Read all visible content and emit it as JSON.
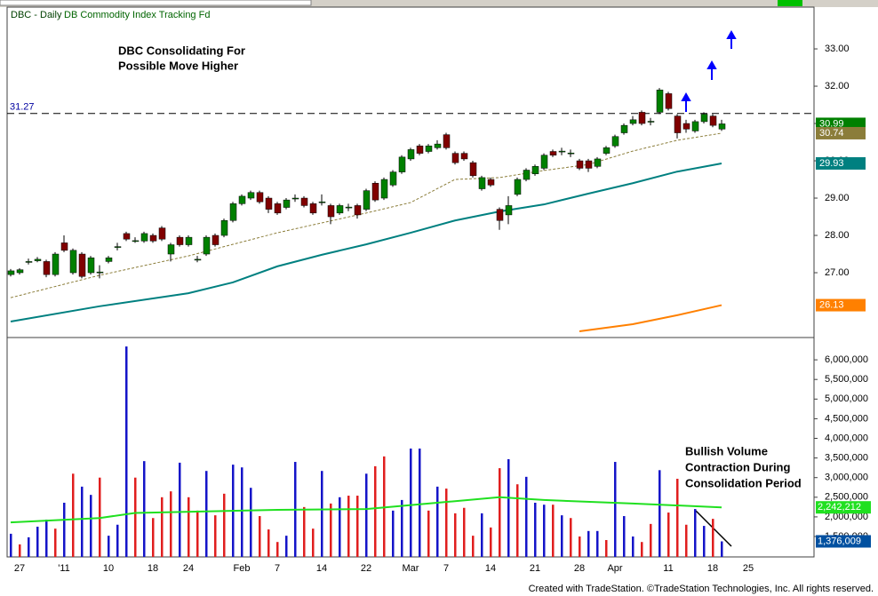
{
  "header": {
    "symbol": "DBC - Daily",
    "name": "DB Commodity Index Tracking Fd"
  },
  "footer": "Created with TradeStation. ©TradeStation Technologies, Inc. All rights reserved.",
  "chart_data": [
    {
      "type": "candlestick",
      "categories": [
        null,
        "27",
        null,
        null,
        null,
        null,
        "'11",
        null,
        null,
        null,
        null,
        "10",
        null,
        null,
        null,
        null,
        "18",
        null,
        null,
        null,
        "24",
        null,
        null,
        null,
        null,
        null,
        "Feb",
        null,
        null,
        null,
        "7",
        null,
        null,
        null,
        null,
        "14",
        null,
        null,
        null,
        null,
        "22",
        null,
        null,
        null,
        null,
        "Mar",
        null,
        null,
        null,
        "7",
        null,
        null,
        null,
        null,
        "14",
        null,
        null,
        null,
        null,
        "21",
        null,
        null,
        null,
        null,
        "28",
        null,
        null,
        null,
        "Apr",
        null,
        null,
        null,
        null,
        null,
        "11",
        null,
        null,
        null,
        null,
        "18",
        null,
        null,
        null,
        "25"
      ],
      "open": [
        26.95,
        27.0,
        27.28,
        27.32,
        27.3,
        26.95,
        27.8,
        27.0,
        27.5,
        27.0,
        27.0,
        27.3,
        27.68,
        28.05,
        27.84,
        27.85,
        28.0,
        28.2,
        27.5,
        27.95,
        27.75,
        27.34,
        27.5,
        28.0,
        28.0,
        28.4,
        28.85,
        29.0,
        29.15,
        29.0,
        28.85,
        28.75,
        28.98,
        29.0,
        28.85,
        28.88,
        28.8,
        28.6,
        28.74,
        28.8,
        28.7,
        29.4,
        29.0,
        29.35,
        29.7,
        30.05,
        30.4,
        30.25,
        30.35,
        30.7,
        30.2,
        30.2,
        29.95,
        29.25,
        29.5,
        28.7,
        28.55,
        29.1,
        29.5,
        29.65,
        29.8,
        30.25,
        30.24,
        30.19,
        30.0,
        30.0,
        29.85,
        30.2,
        30.4,
        30.75,
        31.0,
        31.3,
        31.04,
        31.3,
        31.8,
        31.2,
        31.0,
        30.8,
        31.05,
        31.2,
        30.85,
        null,
        null,
        null
      ],
      "high": [
        27.1,
        27.12,
        27.38,
        27.42,
        27.35,
        27.55,
        28.0,
        27.65,
        27.55,
        27.45,
        27.2,
        27.45,
        27.8,
        28.1,
        27.95,
        28.1,
        28.05,
        28.25,
        27.8,
        28.0,
        28.0,
        27.45,
        28.0,
        28.05,
        28.45,
        28.9,
        29.1,
        29.2,
        29.2,
        29.05,
        28.9,
        29.0,
        29.1,
        29.05,
        28.9,
        29.1,
        28.85,
        28.85,
        28.85,
        28.85,
        29.25,
        29.45,
        29.55,
        29.75,
        30.15,
        30.35,
        30.45,
        30.45,
        30.55,
        30.75,
        30.25,
        30.25,
        30.0,
        29.6,
        29.55,
        28.75,
        29.05,
        29.55,
        29.8,
        29.9,
        30.2,
        30.3,
        30.35,
        30.3,
        30.05,
        30.05,
        30.1,
        30.4,
        30.7,
        31.0,
        31.2,
        31.35,
        31.15,
        31.95,
        31.85,
        31.25,
        31.1,
        31.1,
        31.3,
        31.25,
        31.1,
        null,
        null,
        null
      ],
      "low": [
        26.9,
        26.95,
        27.22,
        27.28,
        26.88,
        26.9,
        27.55,
        26.95,
        26.85,
        26.95,
        26.85,
        27.25,
        27.6,
        27.85,
        27.8,
        27.8,
        27.8,
        27.85,
        27.3,
        27.7,
        27.7,
        27.28,
        27.45,
        27.7,
        27.95,
        28.35,
        28.8,
        28.95,
        28.85,
        28.6,
        28.55,
        28.7,
        28.9,
        28.75,
        28.55,
        28.8,
        28.3,
        28.55,
        28.65,
        28.45,
        28.65,
        28.9,
        28.95,
        29.3,
        29.65,
        30.0,
        30.15,
        30.2,
        30.3,
        30.3,
        29.9,
        30.0,
        29.55,
        29.2,
        29.3,
        28.15,
        28.3,
        29.05,
        29.45,
        29.6,
        29.75,
        30.1,
        30.15,
        30.1,
        29.75,
        29.7,
        29.8,
        30.15,
        30.35,
        30.7,
        30.95,
        30.95,
        30.95,
        31.25,
        31.35,
        30.6,
        30.75,
        30.75,
        31.0,
        30.9,
        30.8,
        null,
        null,
        null
      ],
      "close": [
        27.05,
        27.08,
        27.3,
        27.36,
        26.95,
        27.5,
        27.6,
        27.6,
        26.9,
        27.4,
        27.02,
        27.4,
        27.7,
        27.9,
        27.86,
        28.05,
        27.85,
        27.9,
        27.75,
        27.75,
        27.95,
        27.36,
        27.95,
        27.75,
        28.4,
        28.85,
        29.05,
        29.15,
        28.9,
        28.7,
        28.6,
        28.95,
        29.0,
        28.8,
        28.6,
        28.9,
        28.5,
        28.8,
        28.76,
        28.55,
        29.2,
        28.95,
        29.5,
        29.7,
        30.1,
        30.3,
        30.2,
        30.4,
        30.45,
        30.35,
        29.95,
        30.05,
        29.6,
        29.55,
        29.35,
        28.4,
        28.8,
        29.5,
        29.75,
        29.85,
        30.15,
        30.15,
        30.26,
        30.21,
        29.8,
        29.8,
        30.05,
        30.35,
        30.65,
        30.95,
        31.1,
        31.0,
        31.06,
        31.9,
        31.4,
        30.75,
        30.85,
        31.05,
        31.25,
        30.95,
        30.99,
        null,
        null,
        null
      ],
      "up_color": "#008000",
      "down_color": "#800000",
      "last_color": "#008000",
      "lines": [
        {
          "color": "#8b7d3a",
          "dash": true,
          "x": [
            0,
            10,
            20,
            30,
            40,
            45,
            50,
            55,
            60,
            65,
            70,
            75,
            80
          ],
          "values": [
            26.33,
            26.93,
            27.45,
            28.07,
            28.6,
            28.88,
            29.5,
            29.55,
            29.74,
            29.9,
            30.26,
            30.55,
            30.74
          ]
        },
        {
          "color": "#008080",
          "dash": false,
          "x": [
            0,
            10,
            20,
            25,
            30,
            35,
            40,
            45,
            50,
            55,
            60,
            65,
            70,
            75,
            80
          ],
          "values": [
            25.69,
            26.1,
            26.45,
            26.74,
            27.17,
            27.48,
            27.76,
            28.07,
            28.4,
            28.64,
            28.83,
            29.12,
            29.4,
            29.71,
            29.93
          ]
        },
        {
          "color": "#ff8000",
          "dash": false,
          "x": [
            64,
            70,
            75,
            80
          ],
          "values": [
            25.43,
            25.62,
            25.86,
            26.13
          ]
        }
      ],
      "hline": {
        "value": 31.27,
        "label": "31.27"
      },
      "ylim": [
        25.31,
        34.12
      ],
      "yticks": [
        {
          "value": 27,
          "label": "27.00"
        },
        {
          "value": 28,
          "label": "28.00"
        },
        {
          "value": 29,
          "label": "29.00"
        },
        {
          "value": 30,
          "label": "30.00"
        },
        {
          "value": 31,
          "label": "31.00"
        },
        {
          "value": 32,
          "label": "32.00"
        },
        {
          "value": 33,
          "label": "33.00"
        }
      ],
      "annotations": [
        [
          "DBC Consolidating For",
          "Possible Move Higher"
        ]
      ]
    },
    {
      "type": "bar",
      "values": [
        1570000,
        1300000,
        1480000,
        1750000,
        1930000,
        1700000,
        2360000,
        3100000,
        2770000,
        2560000,
        3000000,
        1520000,
        1800000,
        6340000,
        3000000,
        3420000,
        1970000,
        2500000,
        2650000,
        3380000,
        2500000,
        2160000,
        3170000,
        2040000,
        2590000,
        3330000,
        3260000,
        2740000,
        2020000,
        1680000,
        1360000,
        1520000,
        3400000,
        2250000,
        1700000,
        3170000,
        2340000,
        2500000,
        2540000,
        2540000,
        3100000,
        3290000,
        3540000,
        2160000,
        2430000,
        3740000,
        3740000,
        2160000,
        2770000,
        2720000,
        2090000,
        2230000,
        1520000,
        2090000,
        1730000,
        3240000,
        3470000,
        2830000,
        3020000,
        2360000,
        2310000,
        2310000,
        2040000,
        1970000,
        1500000,
        1640000,
        1640000,
        1410000,
        3400000,
        2020000,
        1500000,
        1360000,
        1820000,
        3190000,
        2110000,
        2970000,
        1800000,
        2200000,
        1770000,
        1950000,
        1376009,
        null,
        null,
        null
      ],
      "value_labels": {
        "80": "1,376,009"
      },
      "colors": [
        "#1414c8",
        "#e01e1e"
      ],
      "color_index": [
        0,
        1,
        0,
        0,
        0,
        1,
        0,
        1,
        0,
        0,
        1,
        0,
        0,
        0,
        1,
        0,
        1,
        1,
        1,
        0,
        1,
        1,
        0,
        1,
        1,
        0,
        0,
        0,
        1,
        1,
        1,
        0,
        0,
        1,
        1,
        0,
        1,
        0,
        1,
        1,
        0,
        1,
        1,
        0,
        0,
        0,
        0,
        1,
        0,
        1,
        1,
        1,
        1,
        0,
        1,
        1,
        0,
        1,
        0,
        0,
        0,
        1,
        0,
        1,
        1,
        0,
        0,
        1,
        0,
        0,
        0,
        1,
        1,
        0,
        1,
        1,
        1,
        0,
        0,
        1,
        0,
        null,
        null,
        null
      ],
      "last_color": "#0050a0",
      "average": {
        "color": "#20e020",
        "x": [
          0,
          10,
          14,
          30,
          40,
          48,
          55,
          60,
          70,
          80
        ],
        "values": [
          1860000,
          1970000,
          2100000,
          2180000,
          2200000,
          2360000,
          2500000,
          2430000,
          2340000,
          2242212
        ],
        "label": "2,242,212"
      },
      "ylim": [
        980000,
        6500000
      ],
      "yticks": [
        {
          "value": 1500000,
          "label": "1,500,000"
        },
        {
          "value": 2000000,
          "label": "2,000,000"
        },
        {
          "value": 2500000,
          "label": "2,500,000"
        },
        {
          "value": 3000000,
          "label": "3,000,000"
        },
        {
          "value": 3500000,
          "label": "3,500,000"
        },
        {
          "value": 4000000,
          "label": "4,000,000"
        },
        {
          "value": 4500000,
          "label": "4,500,000"
        },
        {
          "value": 5000000,
          "label": "5,000,000"
        },
        {
          "value": 5500000,
          "label": "5,500,000"
        },
        {
          "value": 6000000,
          "label": "6,000,000"
        }
      ],
      "annotations": [
        [
          "Bullish Volume",
          "Contraction During",
          "Consolidation Period"
        ]
      ]
    }
  ]
}
